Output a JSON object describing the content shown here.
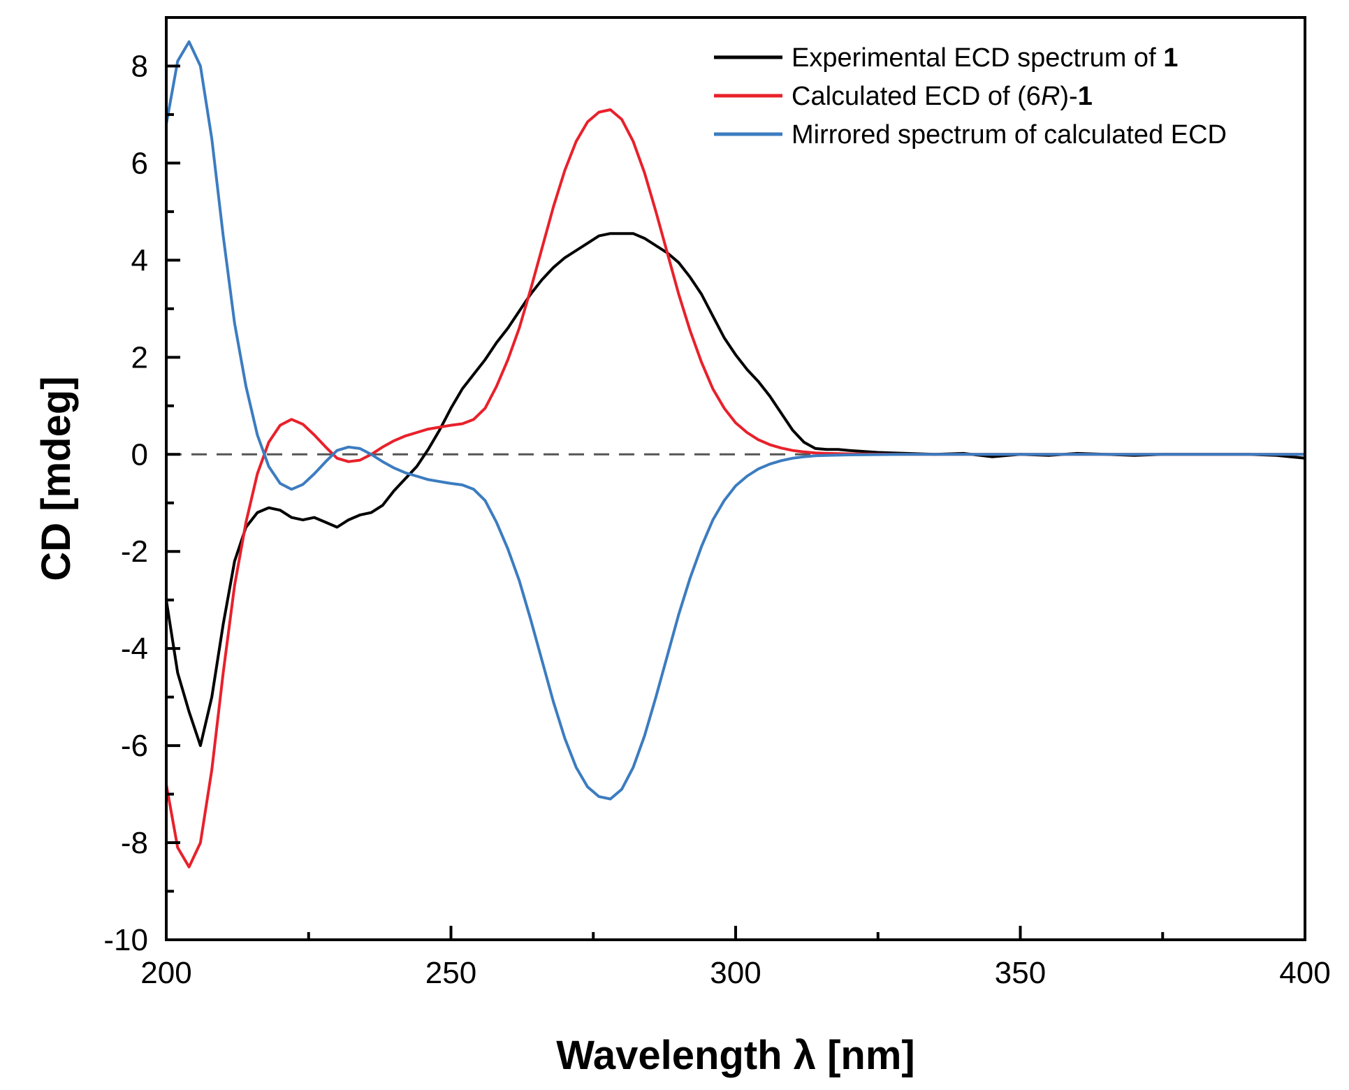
{
  "chart_data": {
    "type": "line",
    "title": "",
    "xlabel": "Wavelength λ [nm]",
    "ylabel": "CD [mdeg]",
    "xlim": [
      200,
      400
    ],
    "ylim": [
      -10,
      9
    ],
    "x_ticks": [
      200,
      250,
      300,
      350,
      400
    ],
    "x_tick_labels": [
      "200",
      "250",
      "300",
      "350",
      "400"
    ],
    "x_minor_ticks": [
      225,
      275,
      325,
      375
    ],
    "y_ticks": [
      8,
      6,
      4,
      2,
      0,
      -2,
      -4,
      -6,
      -8,
      -10
    ],
    "y_tick_labels": [
      "8",
      "6",
      "4",
      "2",
      "0",
      "-2",
      "-4",
      "-6",
      "-8",
      "-10"
    ],
    "y_minor_ticks": [
      7,
      5,
      3,
      1,
      -1,
      -3,
      -5,
      -7,
      -9
    ],
    "grid": false,
    "legend_position": "top-right",
    "zero_line": {
      "y": 0,
      "style": "dashed",
      "color": "#555555"
    },
    "series": [
      {
        "name": "Experimental ECD spectrum of 1",
        "legend_parts": [
          {
            "text": "Experimental ECD spectrum of ",
            "style": "normal"
          },
          {
            "text": "1",
            "style": "bold"
          }
        ],
        "color": "#000000",
        "points": [
          [
            200,
            -3.0
          ],
          [
            202,
            -4.5
          ],
          [
            204,
            -5.3
          ],
          [
            206,
            -6.0
          ],
          [
            208,
            -5.0
          ],
          [
            210,
            -3.5
          ],
          [
            212,
            -2.2
          ],
          [
            214,
            -1.5
          ],
          [
            216,
            -1.2
          ],
          [
            218,
            -1.1
          ],
          [
            220,
            -1.15
          ],
          [
            222,
            -1.3
          ],
          [
            224,
            -1.35
          ],
          [
            226,
            -1.3
          ],
          [
            228,
            -1.4
          ],
          [
            230,
            -1.5
          ],
          [
            232,
            -1.35
          ],
          [
            234,
            -1.25
          ],
          [
            236,
            -1.2
          ],
          [
            238,
            -1.05
          ],
          [
            240,
            -0.75
          ],
          [
            242,
            -0.5
          ],
          [
            244,
            -0.25
          ],
          [
            246,
            0.1
          ],
          [
            248,
            0.5
          ],
          [
            250,
            0.95
          ],
          [
            252,
            1.35
          ],
          [
            254,
            1.65
          ],
          [
            256,
            1.95
          ],
          [
            258,
            2.3
          ],
          [
            260,
            2.6
          ],
          [
            262,
            2.95
          ],
          [
            264,
            3.3
          ],
          [
            266,
            3.6
          ],
          [
            268,
            3.85
          ],
          [
            270,
            4.05
          ],
          [
            272,
            4.2
          ],
          [
            274,
            4.35
          ],
          [
            276,
            4.5
          ],
          [
            278,
            4.55
          ],
          [
            280,
            4.55
          ],
          [
            282,
            4.55
          ],
          [
            284,
            4.45
          ],
          [
            286,
            4.3
          ],
          [
            288,
            4.15
          ],
          [
            290,
            3.95
          ],
          [
            292,
            3.65
          ],
          [
            294,
            3.3
          ],
          [
            296,
            2.85
          ],
          [
            298,
            2.4
          ],
          [
            300,
            2.05
          ],
          [
            302,
            1.75
          ],
          [
            304,
            1.5
          ],
          [
            306,
            1.2
          ],
          [
            308,
            0.85
          ],
          [
            310,
            0.5
          ],
          [
            312,
            0.25
          ],
          [
            314,
            0.12
          ],
          [
            316,
            0.1
          ],
          [
            318,
            0.1
          ],
          [
            320,
            0.08
          ],
          [
            325,
            0.04
          ],
          [
            330,
            0.02
          ],
          [
            335,
            0.0
          ],
          [
            340,
            0.02
          ],
          [
            345,
            -0.05
          ],
          [
            350,
            0.0
          ],
          [
            355,
            -0.02
          ],
          [
            360,
            0.02
          ],
          [
            365,
            0.0
          ],
          [
            370,
            -0.02
          ],
          [
            375,
            0.0
          ],
          [
            380,
            0.0
          ],
          [
            385,
            0.0
          ],
          [
            390,
            0.0
          ],
          [
            395,
            -0.02
          ],
          [
            400,
            -0.08
          ]
        ]
      },
      {
        "name": "Calculated ECD of (6R)-1",
        "legend_parts": [
          {
            "text": "Calculated ECD of (6",
            "style": "normal"
          },
          {
            "text": "R",
            "style": "italic"
          },
          {
            "text": ")-",
            "style": "normal"
          },
          {
            "text": "1",
            "style": "bold"
          }
        ],
        "color": "#e8212b",
        "points": [
          [
            200,
            -6.8
          ],
          [
            202,
            -8.1
          ],
          [
            204,
            -8.5
          ],
          [
            206,
            -8.0
          ],
          [
            208,
            -6.5
          ],
          [
            210,
            -4.5
          ],
          [
            212,
            -2.7
          ],
          [
            214,
            -1.4
          ],
          [
            216,
            -0.4
          ],
          [
            218,
            0.25
          ],
          [
            220,
            0.6
          ],
          [
            222,
            0.72
          ],
          [
            224,
            0.62
          ],
          [
            226,
            0.4
          ],
          [
            228,
            0.15
          ],
          [
            230,
            -0.08
          ],
          [
            232,
            -0.15
          ],
          [
            234,
            -0.12
          ],
          [
            236,
            0.0
          ],
          [
            238,
            0.15
          ],
          [
            240,
            0.28
          ],
          [
            242,
            0.38
          ],
          [
            244,
            0.45
          ],
          [
            246,
            0.52
          ],
          [
            248,
            0.56
          ],
          [
            250,
            0.6
          ],
          [
            252,
            0.63
          ],
          [
            254,
            0.72
          ],
          [
            256,
            0.95
          ],
          [
            258,
            1.4
          ],
          [
            260,
            1.95
          ],
          [
            262,
            2.6
          ],
          [
            264,
            3.4
          ],
          [
            266,
            4.25
          ],
          [
            268,
            5.1
          ],
          [
            270,
            5.85
          ],
          [
            272,
            6.45
          ],
          [
            274,
            6.85
          ],
          [
            276,
            7.05
          ],
          [
            278,
            7.1
          ],
          [
            280,
            6.9
          ],
          [
            282,
            6.45
          ],
          [
            284,
            5.8
          ],
          [
            286,
            5.0
          ],
          [
            288,
            4.15
          ],
          [
            290,
            3.3
          ],
          [
            292,
            2.55
          ],
          [
            294,
            1.9
          ],
          [
            296,
            1.35
          ],
          [
            298,
            0.95
          ],
          [
            300,
            0.65
          ],
          [
            302,
            0.45
          ],
          [
            304,
            0.3
          ],
          [
            306,
            0.2
          ],
          [
            308,
            0.13
          ],
          [
            310,
            0.08
          ],
          [
            312,
            0.05
          ],
          [
            314,
            0.03
          ],
          [
            316,
            0.02
          ],
          [
            320,
            0.01
          ],
          [
            330,
            0.0
          ],
          [
            340,
            0.0
          ],
          [
            350,
            0.0
          ],
          [
            360,
            0.0
          ],
          [
            370,
            0.0
          ],
          [
            380,
            0.0
          ],
          [
            390,
            0.0
          ],
          [
            400,
            0.0
          ]
        ]
      },
      {
        "name": "Mirrored spectrum of calculated ECD",
        "legend_parts": [
          {
            "text": "Mirrored spectrum of calculated ECD",
            "style": "normal"
          }
        ],
        "color": "#3c7cc0",
        "points": [
          [
            200,
            6.8
          ],
          [
            202,
            8.1
          ],
          [
            204,
            8.5
          ],
          [
            206,
            8.0
          ],
          [
            208,
            6.5
          ],
          [
            210,
            4.5
          ],
          [
            212,
            2.7
          ],
          [
            214,
            1.4
          ],
          [
            216,
            0.4
          ],
          [
            218,
            -0.25
          ],
          [
            220,
            -0.6
          ],
          [
            222,
            -0.72
          ],
          [
            224,
            -0.62
          ],
          [
            226,
            -0.4
          ],
          [
            228,
            -0.15
          ],
          [
            230,
            0.08
          ],
          [
            232,
            0.15
          ],
          [
            234,
            0.12
          ],
          [
            236,
            0.0
          ],
          [
            238,
            -0.15
          ],
          [
            240,
            -0.28
          ],
          [
            242,
            -0.38
          ],
          [
            244,
            -0.45
          ],
          [
            246,
            -0.52
          ],
          [
            248,
            -0.56
          ],
          [
            250,
            -0.6
          ],
          [
            252,
            -0.63
          ],
          [
            254,
            -0.72
          ],
          [
            256,
            -0.95
          ],
          [
            258,
            -1.4
          ],
          [
            260,
            -1.95
          ],
          [
            262,
            -2.6
          ],
          [
            264,
            -3.4
          ],
          [
            266,
            -4.25
          ],
          [
            268,
            -5.1
          ],
          [
            270,
            -5.85
          ],
          [
            272,
            -6.45
          ],
          [
            274,
            -6.85
          ],
          [
            276,
            -7.05
          ],
          [
            278,
            -7.1
          ],
          [
            280,
            -6.9
          ],
          [
            282,
            -6.45
          ],
          [
            284,
            -5.8
          ],
          [
            286,
            -5.0
          ],
          [
            288,
            -4.15
          ],
          [
            290,
            -3.3
          ],
          [
            292,
            -2.55
          ],
          [
            294,
            -1.9
          ],
          [
            296,
            -1.35
          ],
          [
            298,
            -0.95
          ],
          [
            300,
            -0.65
          ],
          [
            302,
            -0.45
          ],
          [
            304,
            -0.3
          ],
          [
            306,
            -0.2
          ],
          [
            308,
            -0.13
          ],
          [
            310,
            -0.08
          ],
          [
            312,
            -0.05
          ],
          [
            314,
            -0.03
          ],
          [
            316,
            -0.02
          ],
          [
            320,
            -0.01
          ],
          [
            330,
            0.0
          ],
          [
            340,
            0.0
          ],
          [
            350,
            0.0
          ],
          [
            360,
            0.0
          ],
          [
            370,
            0.0
          ],
          [
            380,
            0.0
          ],
          [
            390,
            0.0
          ],
          [
            400,
            0.0
          ]
        ]
      }
    ]
  }
}
